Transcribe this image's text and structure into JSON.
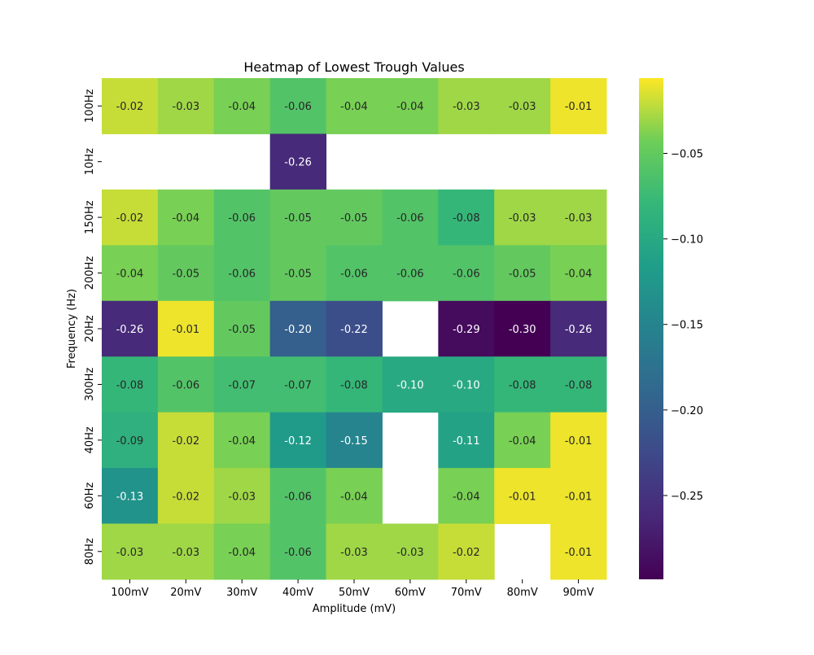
{
  "chart_data": {
    "type": "heatmap",
    "title": "Heatmap of Lowest Trough Values",
    "xlabel": "Amplitude (mV)",
    "ylabel": "Frequency (Hz)",
    "x_categories": [
      "100mV",
      "20mV",
      "30mV",
      "40mV",
      "50mV",
      "60mV",
      "70mV",
      "80mV",
      "90mV"
    ],
    "y_categories": [
      "100Hz",
      "10Hz",
      "150Hz",
      "200Hz",
      "20Hz",
      "300Hz",
      "40Hz",
      "60Hz",
      "80Hz"
    ],
    "values": [
      [
        -0.02,
        -0.03,
        -0.04,
        -0.06,
        -0.04,
        -0.04,
        -0.03,
        -0.03,
        -0.01
      ],
      [
        null,
        null,
        null,
        -0.26,
        null,
        null,
        null,
        null,
        null
      ],
      [
        -0.02,
        -0.04,
        -0.06,
        -0.05,
        -0.05,
        -0.06,
        -0.08,
        -0.03,
        -0.03
      ],
      [
        -0.04,
        -0.05,
        -0.06,
        -0.05,
        -0.06,
        -0.06,
        -0.06,
        -0.05,
        -0.04
      ],
      [
        -0.26,
        -0.01,
        -0.05,
        -0.2,
        -0.22,
        null,
        -0.29,
        -0.3,
        -0.26
      ],
      [
        -0.08,
        -0.06,
        -0.07,
        -0.07,
        -0.08,
        -0.1,
        -0.1,
        -0.08,
        -0.08
      ],
      [
        -0.09,
        -0.02,
        -0.04,
        -0.12,
        -0.15,
        null,
        -0.11,
        -0.04,
        -0.01
      ],
      [
        -0.13,
        -0.02,
        -0.03,
        -0.06,
        -0.04,
        null,
        -0.04,
        -0.01,
        -0.01
      ],
      [
        -0.03,
        -0.03,
        -0.04,
        -0.06,
        -0.03,
        -0.03,
        -0.02,
        null,
        -0.01
      ]
    ],
    "vmin": -0.299,
    "vmax": -0.006,
    "colormap": "viridis",
    "colorbar_ticks": [
      -0.05,
      -0.1,
      -0.15,
      -0.2,
      -0.25
    ],
    "colorbar_tick_labels": [
      "−0.05",
      "−0.10",
      "−0.15",
      "−0.20",
      "−0.25"
    ],
    "grid": false,
    "legend": "colorbar-right"
  }
}
